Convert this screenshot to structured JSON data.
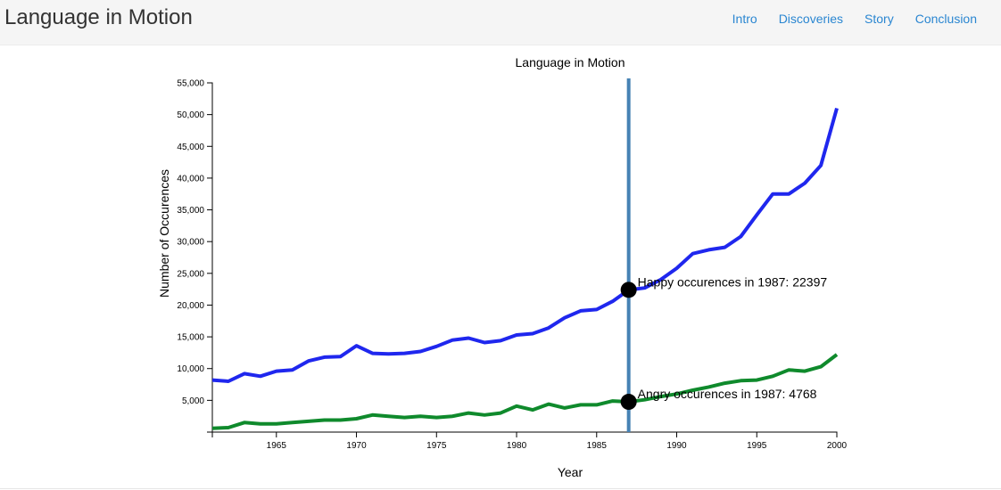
{
  "navbar": {
    "brand": "Language in Motion",
    "links": [
      "Intro",
      "Discoveries",
      "Story",
      "Conclusion"
    ]
  },
  "chart_data": {
    "type": "line",
    "title": "Language in Motion",
    "xlabel": "Year",
    "ylabel": "Number of Occurences",
    "xlim": [
      1961,
      2000
    ],
    "ylim": [
      0,
      55000
    ],
    "x_ticks": [
      1965,
      1970,
      1975,
      1980,
      1985,
      1990,
      1995,
      2000
    ],
    "y_ticks": [
      5000,
      10000,
      15000,
      20000,
      25000,
      30000,
      35000,
      40000,
      45000,
      50000,
      55000
    ],
    "y_tick_labels": [
      "5,000",
      "10,000",
      "15,000",
      "20,000",
      "25,000",
      "30,000",
      "35,000",
      "40,000",
      "45,000",
      "50,000",
      "55,000"
    ],
    "grid": false,
    "colors": {
      "happy": "#1f27ee",
      "angry": "#0f8a2c",
      "focus_line": "#4682b4",
      "marker": "#000000"
    },
    "x": [
      1961,
      1962,
      1963,
      1964,
      1965,
      1966,
      1967,
      1968,
      1969,
      1970,
      1971,
      1972,
      1973,
      1974,
      1975,
      1976,
      1977,
      1978,
      1979,
      1980,
      1981,
      1982,
      1983,
      1984,
      1985,
      1986,
      1987,
      1988,
      1989,
      1990,
      1991,
      1992,
      1993,
      1994,
      1995,
      1996,
      1997,
      1998,
      1999,
      2000
    ],
    "series": [
      {
        "key": "happy",
        "values": [
          8200,
          8000,
          9200,
          8800,
          9600,
          9800,
          11200,
          11800,
          11900,
          13600,
          12400,
          12300,
          12400,
          12700,
          13500,
          14500,
          14800,
          14100,
          14400,
          15300,
          15500,
          16400,
          18000,
          19100,
          19300,
          20600,
          22397,
          22700,
          24000,
          25800,
          28100,
          28700,
          29100,
          30800,
          34200,
          37500,
          37500,
          39200,
          42000,
          51000
        ]
      },
      {
        "key": "angry",
        "values": [
          600,
          700,
          1500,
          1300,
          1300,
          1500,
          1700,
          1900,
          1900,
          2100,
          2700,
          2500,
          2300,
          2500,
          2300,
          2500,
          3000,
          2700,
          3000,
          4100,
          3500,
          4400,
          3800,
          4300,
          4300,
          4900,
          4768,
          5100,
          5600,
          6000,
          6600,
          7100,
          7700,
          8100,
          8200,
          8800,
          9800,
          9600,
          10300,
          12200
        ]
      }
    ],
    "focus": {
      "year": 1987,
      "happy_label": "Happy occurences in 1987: 22397",
      "angry_label": "Angry occurences in 1987: 4768"
    }
  }
}
